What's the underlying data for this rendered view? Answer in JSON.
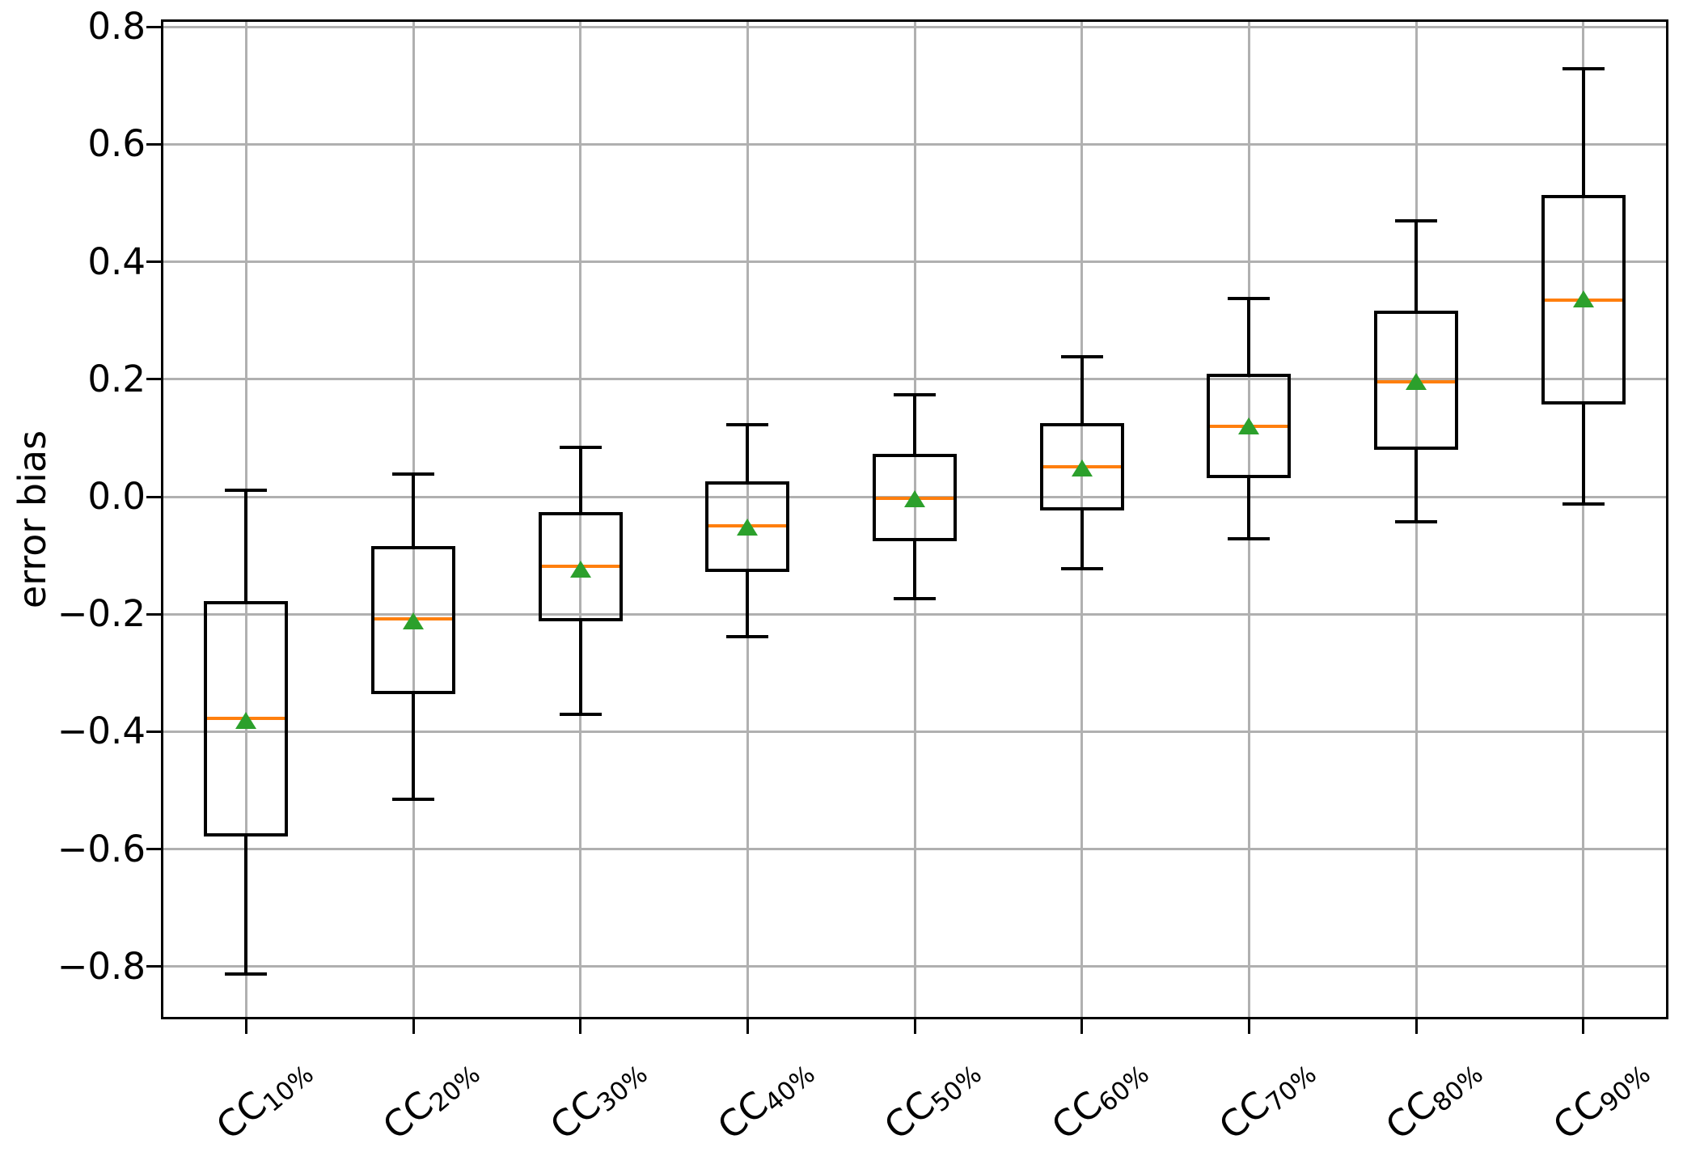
{
  "chart_data": {
    "type": "boxplot",
    "title": "",
    "ylabel": "error bias",
    "xlabel": "",
    "grid": true,
    "legend_position": "none",
    "ylim": [
      -0.887,
      0.81
    ],
    "xlim": [
      0.5,
      9.5
    ],
    "yticks": [
      {
        "value": 0.8,
        "label": "0.8"
      },
      {
        "value": 0.6,
        "label": "0.6"
      },
      {
        "value": 0.4,
        "label": "0.4"
      },
      {
        "value": 0.2,
        "label": "0.2"
      },
      {
        "value": 0.0,
        "label": "0.0"
      },
      {
        "value": -0.2,
        "label": "−0.2"
      },
      {
        "value": -0.4,
        "label": "−0.4"
      },
      {
        "value": -0.6,
        "label": "−0.6"
      },
      {
        "value": -0.8,
        "label": "−0.8"
      }
    ],
    "boxes": [
      {
        "label": "CC10%",
        "label_prefix": "CC",
        "label_sub": "10%",
        "whisker_low": -0.813,
        "q1": -0.576,
        "median": -0.378,
        "mean": -0.38,
        "q3": -0.18,
        "whisker_high": 0.011
      },
      {
        "label": "CC20%",
        "label_prefix": "CC",
        "label_sub": "20%",
        "whisker_low": -0.515,
        "q1": -0.333,
        "median": -0.208,
        "mean": -0.21,
        "q3": -0.087,
        "whisker_high": 0.039
      },
      {
        "label": "CC30%",
        "label_prefix": "CC",
        "label_sub": "30%",
        "whisker_low": -0.371,
        "q1": -0.209,
        "median": -0.119,
        "mean": -0.122,
        "q3": -0.029,
        "whisker_high": 0.084
      },
      {
        "label": "CC40%",
        "label_prefix": "CC",
        "label_sub": "40%",
        "whisker_low": -0.238,
        "q1": -0.125,
        "median": -0.05,
        "mean": -0.051,
        "q3": 0.023,
        "whisker_high": 0.122
      },
      {
        "label": "CC50%",
        "label_prefix": "CC",
        "label_sub": "50%",
        "whisker_low": -0.174,
        "q1": -0.073,
        "median": -0.002,
        "mean": -0.003,
        "q3": 0.071,
        "whisker_high": 0.174
      },
      {
        "label": "CC60%",
        "label_prefix": "CC",
        "label_sub": "60%",
        "whisker_low": -0.122,
        "q1": -0.021,
        "median": 0.051,
        "mean": 0.05,
        "q3": 0.122,
        "whisker_high": 0.238
      },
      {
        "label": "CC70%",
        "label_prefix": "CC",
        "label_sub": "70%",
        "whisker_low": -0.071,
        "q1": 0.034,
        "median": 0.12,
        "mean": 0.121,
        "q3": 0.207,
        "whisker_high": 0.338
      },
      {
        "label": "CC80%",
        "label_prefix": "CC",
        "label_sub": "80%",
        "whisker_low": -0.042,
        "q1": 0.083,
        "median": 0.195,
        "mean": 0.197,
        "q3": 0.314,
        "whisker_high": 0.47
      },
      {
        "label": "CC90%",
        "label_prefix": "CC",
        "label_sub": "90%",
        "whisker_low": -0.012,
        "q1": 0.16,
        "median": 0.335,
        "mean": 0.337,
        "q3": 0.511,
        "whisker_high": 0.729
      }
    ],
    "colors": {
      "box_line": "#000000",
      "median_line": "#ff7f0e",
      "mean_marker": "#2ca02c",
      "grid": "#b0b0b0",
      "background": "#ffffff"
    }
  }
}
